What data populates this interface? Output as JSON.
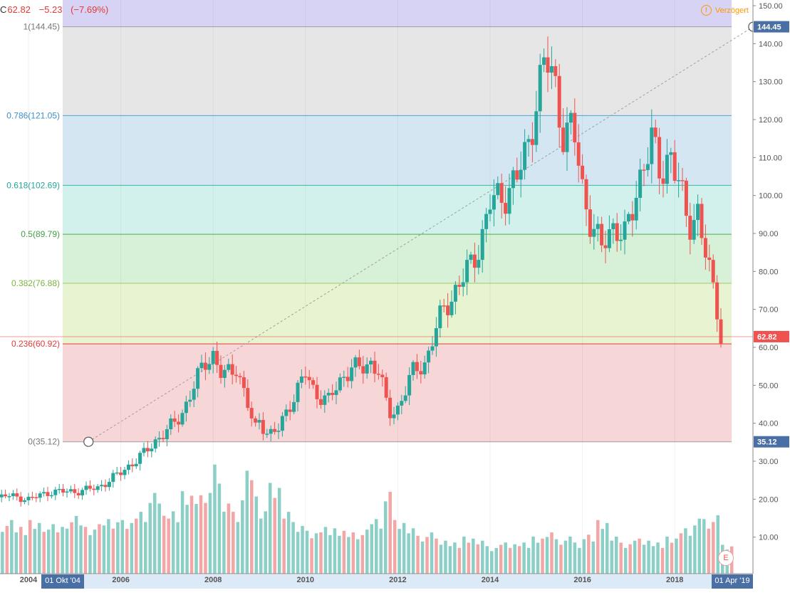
{
  "header": {
    "symbol_prefix": "C",
    "last": "62.82",
    "change": "−5.23",
    "change_pct": "(−7.69%)"
  },
  "delayed_label": "Verzögert",
  "delayed_icon": "info-circle-icon",
  "earnings_badge": "E",
  "colors": {
    "up": "#26a69a",
    "down": "#ef5350",
    "volume_up": "#8ccfc6",
    "volume_down": "#f2a6a6",
    "axis_bg": "#dce9f7"
  },
  "chart_data": {
    "type": "candlestick",
    "x_axis": {
      "ticks": [
        "2004",
        "2006",
        "2008",
        "2010",
        "2012",
        "2014",
        "2016",
        "2018"
      ],
      "start_label": "01 Okt '04",
      "end_label": "01 Apr '19"
    },
    "y_axis": {
      "range": [
        0,
        152
      ],
      "ticks": [
        "10.00",
        "20.00",
        "30.00",
        "40.00",
        "50.00",
        "60.00",
        "70.00",
        "80.00",
        "90.00",
        "100.00",
        "110.00",
        "120.00",
        "130.00",
        "140.00",
        "150.00"
      ],
      "price_badge": "62.82",
      "high_badge": "144.45",
      "low_badge": "35.12"
    },
    "fibonacci": [
      {
        "label": "1(144.45)",
        "price": 144.45,
        "line": "#9e9e9e",
        "fill": "#e6e6e6",
        "text": "#787878"
      },
      {
        "label": "0.786(121.05)",
        "price": 121.05,
        "line": "#4fa3d8",
        "fill": "#d5e6f3",
        "text": "#3d8fc6"
      },
      {
        "label": "0.618(102.69)",
        "price": 102.69,
        "line": "#35b8a6",
        "fill": "#d3f1ec",
        "text": "#26a69a"
      },
      {
        "label": "0.5(89.79)",
        "price": 89.79,
        "line": "#4caf50",
        "fill": "#d6f1d7",
        "text": "#43a047"
      },
      {
        "label": "0.382(76.88)",
        "price": 76.88,
        "line": "#9ccc65",
        "fill": "#e8f3d2",
        "text": "#7cb342"
      },
      {
        "label": "0.236(60.92)",
        "price": 60.92,
        "line": "#e53935",
        "fill": "#f6d6d6",
        "text": "#e53935"
      },
      {
        "label": "0(35.12)",
        "price": 35.12,
        "line": "#9e9e9e",
        "fill": "#ffffff",
        "text": "#787878"
      }
    ],
    "fib_top_band": {
      "price": 152,
      "fill": "#d6d3f4"
    },
    "trend_line": {
      "from": [
        2005.3,
        35.12
      ],
      "to": [
        2019.7,
        144.45
      ]
    },
    "anchors": [
      {
        "date": 2005.3,
        "price": 35.12
      },
      {
        "date": 2019.7,
        "price": 144.45
      }
    ],
    "current_price_line": 62.82,
    "close": [
      [
        2003.0,
        19.5
      ],
      [
        2003.5,
        21.0
      ],
      [
        2004.0,
        20.0
      ],
      [
        2004.5,
        22.0
      ],
      [
        2005.0,
        22.0
      ],
      [
        2005.5,
        23.0
      ],
      [
        2006.0,
        27.0
      ],
      [
        2006.5,
        32.0
      ],
      [
        2006.8,
        36.0
      ],
      [
        2007.0,
        38.0
      ],
      [
        2007.3,
        42.0
      ],
      [
        2007.6,
        50.0
      ],
      [
        2007.8,
        56.0
      ],
      [
        2008.0,
        58.0
      ],
      [
        2008.2,
        52.0
      ],
      [
        2008.5,
        55.0
      ],
      [
        2008.7,
        47.0
      ],
      [
        2008.9,
        38.0
      ],
      [
        2009.0,
        41.0
      ],
      [
        2009.2,
        37.0
      ],
      [
        2009.4,
        38.0
      ],
      [
        2009.7,
        46.0
      ],
      [
        2010.0,
        53.0
      ],
      [
        2010.2,
        48.0
      ],
      [
        2010.5,
        46.0
      ],
      [
        2010.8,
        52.0
      ],
      [
        2011.0,
        55.0
      ],
      [
        2011.2,
        54.0
      ],
      [
        2011.4,
        56.0
      ],
      [
        2011.6,
        54.0
      ],
      [
        2011.8,
        42.0
      ],
      [
        2012.0,
        44.0
      ],
      [
        2012.3,
        53.0
      ],
      [
        2012.6,
        56.0
      ],
      [
        2012.8,
        64.0
      ],
      [
        2013.0,
        70.0
      ],
      [
        2013.3,
        76.0
      ],
      [
        2013.6,
        82.0
      ],
      [
        2013.8,
        88.0
      ],
      [
        2014.0,
        98.0
      ],
      [
        2014.3,
        100.0
      ],
      [
        2014.6,
        105.0
      ],
      [
        2014.8,
        112.0
      ],
      [
        2015.0,
        125.0
      ],
      [
        2015.2,
        136.0
      ],
      [
        2015.4,
        130.0
      ],
      [
        2015.6,
        115.0
      ],
      [
        2015.8,
        118.0
      ],
      [
        2016.0,
        102.0
      ],
      [
        2016.2,
        92.0
      ],
      [
        2016.4,
        86.0
      ],
      [
        2016.7,
        93.0
      ],
      [
        2016.9,
        88.0
      ],
      [
        2017.1,
        97.0
      ],
      [
        2017.3,
        108.0
      ],
      [
        2017.5,
        114.0
      ],
      [
        2017.7,
        105.0
      ],
      [
        2017.9,
        112.0
      ],
      [
        2018.1,
        102.0
      ],
      [
        2018.3,
        92.0
      ],
      [
        2018.5,
        96.0
      ],
      [
        2018.7,
        82.0
      ],
      [
        2018.9,
        72.0
      ],
      [
        2019.0,
        62.8
      ]
    ],
    "volume": [
      [
        2003.0,
        15
      ],
      [
        2003.3,
        13
      ],
      [
        2003.7,
        12
      ],
      [
        2004.0,
        13
      ],
      [
        2004.4,
        12
      ],
      [
        2004.8,
        14
      ],
      [
        2005.2,
        12
      ],
      [
        2005.6,
        14
      ],
      [
        2006.0,
        13
      ],
      [
        2006.3,
        15
      ],
      [
        2006.6,
        22
      ],
      [
        2006.8,
        18
      ],
      [
        2007.0,
        16
      ],
      [
        2007.3,
        20
      ],
      [
        2007.6,
        19
      ],
      [
        2007.8,
        22
      ],
      [
        2008.0,
        28
      ],
      [
        2008.2,
        18
      ],
      [
        2008.4,
        15
      ],
      [
        2008.6,
        20
      ],
      [
        2008.7,
        32
      ],
      [
        2008.8,
        24
      ],
      [
        2009.0,
        16
      ],
      [
        2009.2,
        22
      ],
      [
        2009.5,
        15
      ],
      [
        2009.8,
        13
      ],
      [
        2010.0,
        11
      ],
      [
        2010.3,
        12
      ],
      [
        2010.6,
        11
      ],
      [
        2010.9,
        10
      ],
      [
        2011.2,
        12
      ],
      [
        2011.5,
        14
      ],
      [
        2011.7,
        21
      ],
      [
        2011.9,
        13
      ],
      [
        2012.2,
        11
      ],
      [
        2012.5,
        10
      ],
      [
        2012.8,
        9
      ],
      [
        2013.1,
        8
      ],
      [
        2013.4,
        9
      ],
      [
        2013.7,
        8
      ],
      [
        2014.0,
        7
      ],
      [
        2014.3,
        8
      ],
      [
        2014.6,
        8
      ],
      [
        2014.9,
        9
      ],
      [
        2015.2,
        10
      ],
      [
        2015.5,
        9
      ],
      [
        2015.8,
        8
      ],
      [
        2016.0,
        10
      ],
      [
        2016.3,
        13
      ],
      [
        2016.6,
        9
      ],
      [
        2016.9,
        8
      ],
      [
        2017.2,
        9
      ],
      [
        2017.5,
        8
      ],
      [
        2017.8,
        9
      ],
      [
        2018.1,
        11
      ],
      [
        2018.4,
        15
      ],
      [
        2018.6,
        14
      ],
      [
        2018.8,
        15
      ],
      [
        2019.0,
        7
      ]
    ]
  }
}
